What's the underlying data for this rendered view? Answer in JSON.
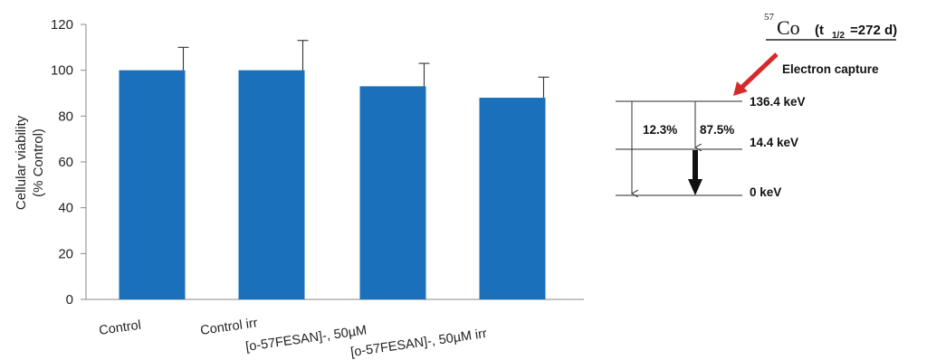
{
  "chart_data": {
    "type": "bar",
    "categories": [
      "Control",
      "Control irr",
      "[o-57FESAN]-, 50µM",
      "[o-57FESAN]-, 50µM irr"
    ],
    "values": [
      100,
      100,
      93,
      88
    ],
    "errors": [
      10,
      13,
      10,
      9
    ],
    "ylabel_line1": "Cellular viability",
    "ylabel_line2": "(% Control)",
    "ylim": [
      0,
      120
    ],
    "yticks": [
      0,
      20,
      40,
      60,
      80,
      100,
      120
    ],
    "bar_color": "#1a70bb",
    "grid": false
  },
  "decay_scheme": {
    "isotope_mass": "57",
    "isotope_symbol": "Co",
    "half_life_prefix": "(t",
    "half_life_sub": "1/2",
    "half_life_value": "=272 d)",
    "capture_label": "Electron capture",
    "arrow_color": "#d42a2a",
    "levels": [
      "136.4 keV",
      "14.4 keV",
      "0 keV"
    ],
    "branches": [
      "12.3%",
      "87.5%"
    ]
  }
}
